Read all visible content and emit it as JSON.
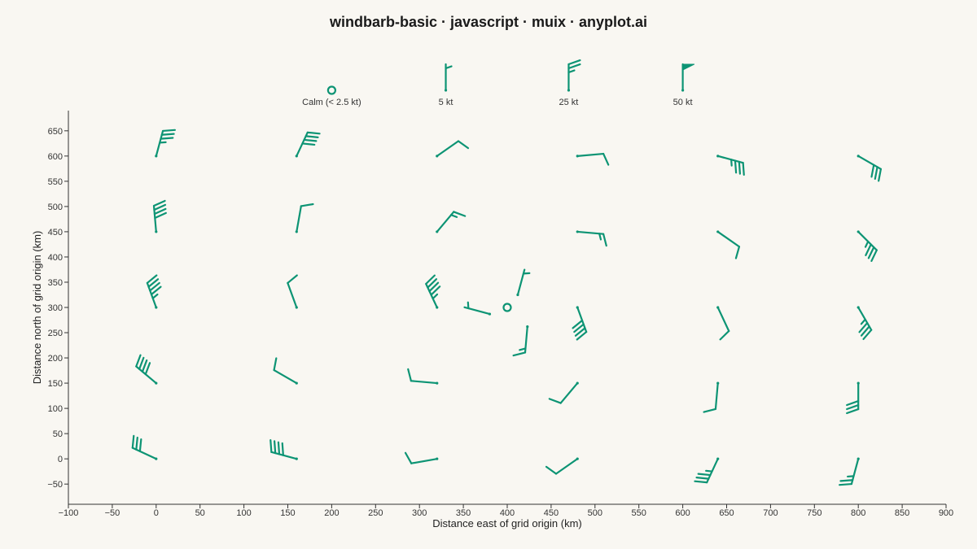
{
  "title": "windbarb-basic · javascript · muix · anyplot.ai",
  "colors": {
    "barb": "#0d9474",
    "axis": "#333333",
    "background": "#f9f7f2"
  },
  "chart_data": {
    "type": "windbarb",
    "xlabel": "Distance east of grid origin (km)",
    "ylabel": "Distance north of grid origin (km)",
    "xlim": [
      -100,
      900
    ],
    "ylim": [
      -90,
      690
    ],
    "xticks": [
      -100,
      -50,
      0,
      50,
      100,
      150,
      200,
      250,
      300,
      350,
      400,
      450,
      500,
      550,
      600,
      650,
      700,
      750,
      800,
      850,
      900
    ],
    "yticks": [
      -50,
      0,
      50,
      100,
      150,
      200,
      250,
      300,
      350,
      400,
      450,
      500,
      550,
      600,
      650
    ],
    "legend": {
      "position": "top",
      "entries": [
        {
          "label": "Calm (< 2.5 kt)",
          "speed": 0,
          "x": 200
        },
        {
          "label": "5 kt",
          "speed": 5,
          "x": 330
        },
        {
          "label": "25 kt",
          "speed": 25,
          "x": 470
        },
        {
          "label": "50 kt",
          "speed": 50,
          "x": 600
        }
      ]
    },
    "barbs": [
      {
        "x": 0,
        "y": 600,
        "direction": 15,
        "speed": 35
      },
      {
        "x": 160,
        "y": 600,
        "direction": 25,
        "speed": 40
      },
      {
        "x": 320,
        "y": 600,
        "direction": 55,
        "speed": 10
      },
      {
        "x": 480,
        "y": 600,
        "direction": 85,
        "speed": 10
      },
      {
        "x": 640,
        "y": 600,
        "direction": 105,
        "speed": 35
      },
      {
        "x": 800,
        "y": 600,
        "direction": 120,
        "speed": 30
      },
      {
        "x": 0,
        "y": 450,
        "direction": 355,
        "speed": 40
      },
      {
        "x": 160,
        "y": 450,
        "direction": 10,
        "speed": 10
      },
      {
        "x": 320,
        "y": 450,
        "direction": 40,
        "speed": 15
      },
      {
        "x": 480,
        "y": 450,
        "direction": 95,
        "speed": 15
      },
      {
        "x": 640,
        "y": 450,
        "direction": 125,
        "speed": 10
      },
      {
        "x": 800,
        "y": 450,
        "direction": 135,
        "speed": 35
      },
      {
        "x": 0,
        "y": 300,
        "direction": 340,
        "speed": 45
      },
      {
        "x": 160,
        "y": 300,
        "direction": 340,
        "speed": 10
      },
      {
        "x": 320,
        "y": 300,
        "direction": 335,
        "speed": 45
      },
      {
        "x": 400,
        "y": 300,
        "speed": 0,
        "calm": true
      },
      {
        "x": 380,
        "y": 287,
        "direction": 285,
        "speed": 5
      },
      {
        "x": 412,
        "y": 325,
        "direction": 15,
        "speed": 5
      },
      {
        "x": 423,
        "y": 262,
        "direction": 185,
        "speed": 15
      },
      {
        "x": 480,
        "y": 300,
        "direction": 160,
        "speed": 40
      },
      {
        "x": 640,
        "y": 300,
        "direction": 155,
        "speed": 10
      },
      {
        "x": 800,
        "y": 300,
        "direction": 150,
        "speed": 35
      },
      {
        "x": 0,
        "y": 150,
        "direction": 310,
        "speed": 40
      },
      {
        "x": 160,
        "y": 150,
        "direction": 300,
        "speed": 10
      },
      {
        "x": 320,
        "y": 150,
        "direction": 275,
        "speed": 10
      },
      {
        "x": 480,
        "y": 150,
        "direction": 220,
        "speed": 10
      },
      {
        "x": 640,
        "y": 150,
        "direction": 185,
        "speed": 10
      },
      {
        "x": 800,
        "y": 150,
        "direction": 180,
        "speed": 30
      },
      {
        "x": 0,
        "y": 0,
        "direction": 295,
        "speed": 30
      },
      {
        "x": 160,
        "y": 0,
        "direction": 285,
        "speed": 40
      },
      {
        "x": 320,
        "y": 0,
        "direction": 260,
        "speed": 10
      },
      {
        "x": 480,
        "y": 0,
        "direction": 235,
        "speed": 10
      },
      {
        "x": 640,
        "y": 0,
        "direction": 205,
        "speed": 35
      },
      {
        "x": 800,
        "y": 0,
        "direction": 195,
        "speed": 25
      }
    ]
  }
}
